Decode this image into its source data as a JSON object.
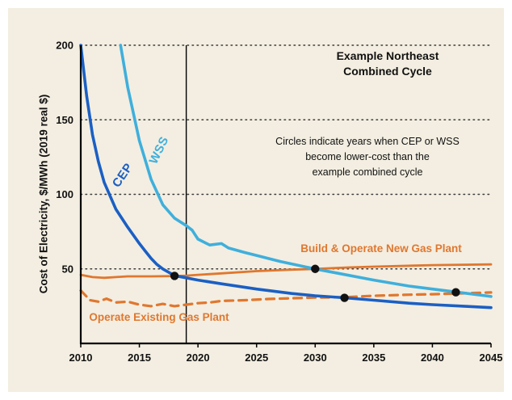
{
  "chart_data": {
    "type": "line",
    "title": "Example Northeast\nCombined Cycle",
    "note": "Circles indicate years when CEP or WSS\nbecome lower-cost than the\nexample combined cycle",
    "xlabel": "",
    "ylabel": "Cost of Electricity, $/MWh (2019 real $)",
    "background": "#f3eee1",
    "xlim": [
      2010,
      2045
    ],
    "ylim": [
      0,
      200
    ],
    "x_ticks": [
      2010,
      2015,
      2020,
      2025,
      2030,
      2035,
      2040,
      2045
    ],
    "y_ticks": [
      50,
      100,
      150,
      200
    ],
    "grid_values": [
      50,
      100,
      150,
      200
    ],
    "vline_year": 2019,
    "series": [
      {
        "id": "new-gas",
        "name": "Build & Operate New Gas Plant",
        "color": "#e0772f",
        "width": 2.8,
        "dash": "",
        "points": [
          [
            2010,
            46
          ],
          [
            2011,
            44.5
          ],
          [
            2012,
            44
          ],
          [
            2013,
            44.5
          ],
          [
            2014,
            45
          ],
          [
            2016,
            45
          ],
          [
            2018,
            45.2
          ],
          [
            2019,
            45.5
          ],
          [
            2020,
            46
          ],
          [
            2022,
            47
          ],
          [
            2025,
            48.5
          ],
          [
            2028,
            49.5
          ],
          [
            2030,
            50
          ],
          [
            2033,
            51
          ],
          [
            2035,
            51.5
          ],
          [
            2040,
            52.5
          ],
          [
            2045,
            53
          ]
        ]
      },
      {
        "id": "existing-gas",
        "name": "Operate Existing Gas Plant",
        "color": "#e0772f",
        "width": 3.2,
        "dash": "10 7",
        "points": [
          [
            2010,
            35.5
          ],
          [
            2010.8,
            29
          ],
          [
            2011.5,
            28
          ],
          [
            2012.2,
            30
          ],
          [
            2013,
            27.5
          ],
          [
            2014,
            28
          ],
          [
            2015,
            26
          ],
          [
            2016,
            25
          ],
          [
            2017,
            26.5
          ],
          [
            2018,
            25
          ],
          [
            2019,
            26
          ],
          [
            2020,
            27
          ],
          [
            2021,
            27.5
          ],
          [
            2022,
            28.5
          ],
          [
            2024,
            29
          ],
          [
            2026,
            29.8
          ],
          [
            2028,
            30.3
          ],
          [
            2030,
            30.8
          ],
          [
            2032.5,
            31
          ],
          [
            2035,
            32
          ],
          [
            2038,
            32.7
          ],
          [
            2040,
            33
          ],
          [
            2043,
            33.7
          ],
          [
            2045,
            34.2
          ]
        ]
      },
      {
        "id": "wss",
        "name": "WSS",
        "color": "#3fafdc",
        "width": 3.6,
        "dash": "",
        "points": [
          [
            2013.4,
            200
          ],
          [
            2014,
            172
          ],
          [
            2015,
            136
          ],
          [
            2016,
            110
          ],
          [
            2017,
            93
          ],
          [
            2018,
            84
          ],
          [
            2019,
            79
          ],
          [
            2019.5,
            76
          ],
          [
            2020,
            70
          ],
          [
            2021,
            66
          ],
          [
            2022,
            67
          ],
          [
            2022.6,
            64
          ],
          [
            2024,
            61
          ],
          [
            2025,
            59
          ],
          [
            2027,
            55
          ],
          [
            2030,
            50
          ],
          [
            2032,
            47
          ],
          [
            2035,
            42.5
          ],
          [
            2038,
            38.5
          ],
          [
            2040,
            36.5
          ],
          [
            2042,
            34.5
          ],
          [
            2045,
            31.5
          ]
        ]
      },
      {
        "id": "cep",
        "name": "CEP",
        "color": "#1b5fc4",
        "width": 3.6,
        "dash": "",
        "points": [
          [
            2010,
            200
          ],
          [
            2010.5,
            166
          ],
          [
            2011,
            140
          ],
          [
            2011.5,
            122
          ],
          [
            2012,
            108
          ],
          [
            2013,
            90
          ],
          [
            2014,
            78
          ],
          [
            2015,
            67
          ],
          [
            2015.5,
            62
          ],
          [
            2016,
            57
          ],
          [
            2016.5,
            53
          ],
          [
            2017,
            50
          ],
          [
            2018,
            45.5
          ],
          [
            2019,
            44
          ],
          [
            2020,
            42.5
          ],
          [
            2022,
            40
          ],
          [
            2025,
            36.5
          ],
          [
            2028,
            33.5
          ],
          [
            2030,
            32
          ],
          [
            2032.5,
            30.6
          ],
          [
            2035,
            29
          ],
          [
            2038,
            27
          ],
          [
            2040,
            26
          ],
          [
            2043,
            24.8
          ],
          [
            2045,
            24
          ]
        ]
      }
    ],
    "markers": {
      "color": "#111111",
      "radius": 5.2,
      "points": [
        [
          2018,
          45.3
        ],
        [
          2030,
          50
        ],
        [
          2032.5,
          30.6
        ],
        [
          2042,
          34.3
        ]
      ]
    },
    "series_labels": {
      "cep": {
        "text": "CEP",
        "color": "#1b5fc4"
      },
      "wss": {
        "text": "WSS",
        "color": "#3fafdc"
      },
      "new-gas": {
        "text": "Build & Operate New Gas Plant",
        "color": "#e0772f"
      },
      "existing-gas": {
        "text": "Operate Existing Gas Plant",
        "color": "#e0772f"
      }
    }
  }
}
